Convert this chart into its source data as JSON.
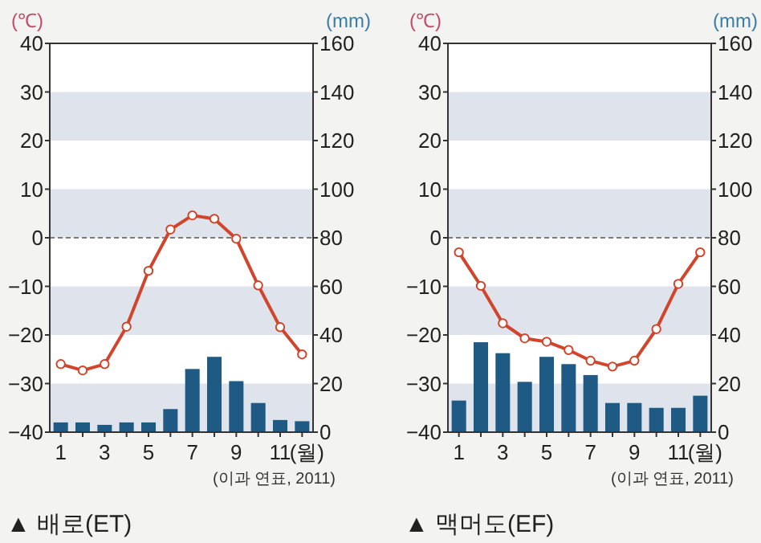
{
  "chart_data": [
    {
      "type": "line",
      "title": "▲ 배로(ET)",
      "ylabel": "(℃)",
      "y2label": "(mm)",
      "xlabel": "(월)",
      "annotations": [
        "(이과 연표, 2011)"
      ],
      "categories": [
        "1",
        null,
        "3",
        null,
        "5",
        null,
        "7",
        null,
        "9",
        null,
        "11",
        null
      ],
      "series": [
        {
          "type": "bar",
          "axis": "y2",
          "color": "#1f5a85",
          "values": [
            4,
            4,
            3,
            4,
            4,
            9.5,
            26,
            31,
            21,
            12,
            5,
            4.5
          ]
        },
        {
          "color": "#d0452c",
          "marker": "circle",
          "values": [
            -26,
            -27.3,
            -26,
            -18.3,
            -6.8,
            1.7,
            4.6,
            3.9,
            -0.2,
            -9.8,
            -18.4,
            -24
          ]
        }
      ],
      "ylim": [
        -40,
        40
      ],
      "yticks": [
        {
          "value": -40,
          "label": "−40"
        },
        {
          "value": -30,
          "label": "−30"
        },
        {
          "value": -20,
          "label": "−20"
        },
        {
          "value": -10,
          "label": "−10"
        },
        0,
        10,
        20,
        30,
        40
      ],
      "y2lim": [
        0,
        160
      ],
      "y2ticks": [
        0,
        20,
        40,
        60,
        80,
        100,
        120,
        140,
        160
      ],
      "bands": [
        {
          "axis": "y",
          "from": -40,
          "to": -30,
          "color": "#dfe4ec"
        },
        {
          "axis": "y",
          "from": -20,
          "to": -10,
          "color": "#dfe4ec"
        },
        {
          "axis": "y",
          "from": 0,
          "to": 10,
          "color": "#dfe4ec"
        },
        {
          "axis": "y",
          "from": 20,
          "to": 30,
          "color": "#dfe4ec"
        }
      ],
      "ref_lines": [
        {
          "axis": "y",
          "value": 0,
          "line_style": "dashed",
          "color": "#555555"
        }
      ]
    },
    {
      "type": "line",
      "title": "▲ 맥머도(EF)",
      "ylabel": "(℃)",
      "y2label": "(mm)",
      "xlabel": "(월)",
      "annotations": [
        "(이과 연표, 2011)"
      ],
      "categories": [
        "1",
        null,
        "3",
        null,
        "5",
        null,
        "7",
        null,
        "9",
        null,
        "11",
        null
      ],
      "series": [
        {
          "type": "bar",
          "axis": "y2",
          "color": "#1f5a85",
          "values": [
            13,
            37,
            32.5,
            20.7,
            31,
            28,
            23.5,
            12,
            12,
            10,
            10,
            15
          ]
        },
        {
          "color": "#d0452c",
          "marker": "circle",
          "values": [
            -3,
            -9.9,
            -17.6,
            -20.7,
            -21.4,
            -23.1,
            -25.3,
            -26.5,
            -25.3,
            -18.8,
            -9.5,
            -3
          ]
        }
      ],
      "ylim": [
        -40,
        40
      ],
      "yticks": [
        {
          "value": -40,
          "label": "−40"
        },
        {
          "value": -30,
          "label": "−30"
        },
        {
          "value": -20,
          "label": "−20"
        },
        {
          "value": -10,
          "label": "−10"
        },
        0,
        10,
        20,
        30,
        40
      ],
      "y2lim": [
        0,
        160
      ],
      "y2ticks": [
        0,
        20,
        40,
        60,
        80,
        100,
        120,
        140,
        160
      ],
      "bands": [
        {
          "axis": "y",
          "from": -40,
          "to": -30,
          "color": "#dfe4ec"
        },
        {
          "axis": "y",
          "from": -20,
          "to": -10,
          "color": "#dfe4ec"
        },
        {
          "axis": "y",
          "from": 0,
          "to": 10,
          "color": "#dfe4ec"
        },
        {
          "axis": "y",
          "from": 20,
          "to": 30,
          "color": "#dfe4ec"
        }
      ],
      "ref_lines": [
        {
          "axis": "y",
          "value": 0,
          "line_style": "dashed",
          "color": "#555555"
        }
      ]
    }
  ]
}
